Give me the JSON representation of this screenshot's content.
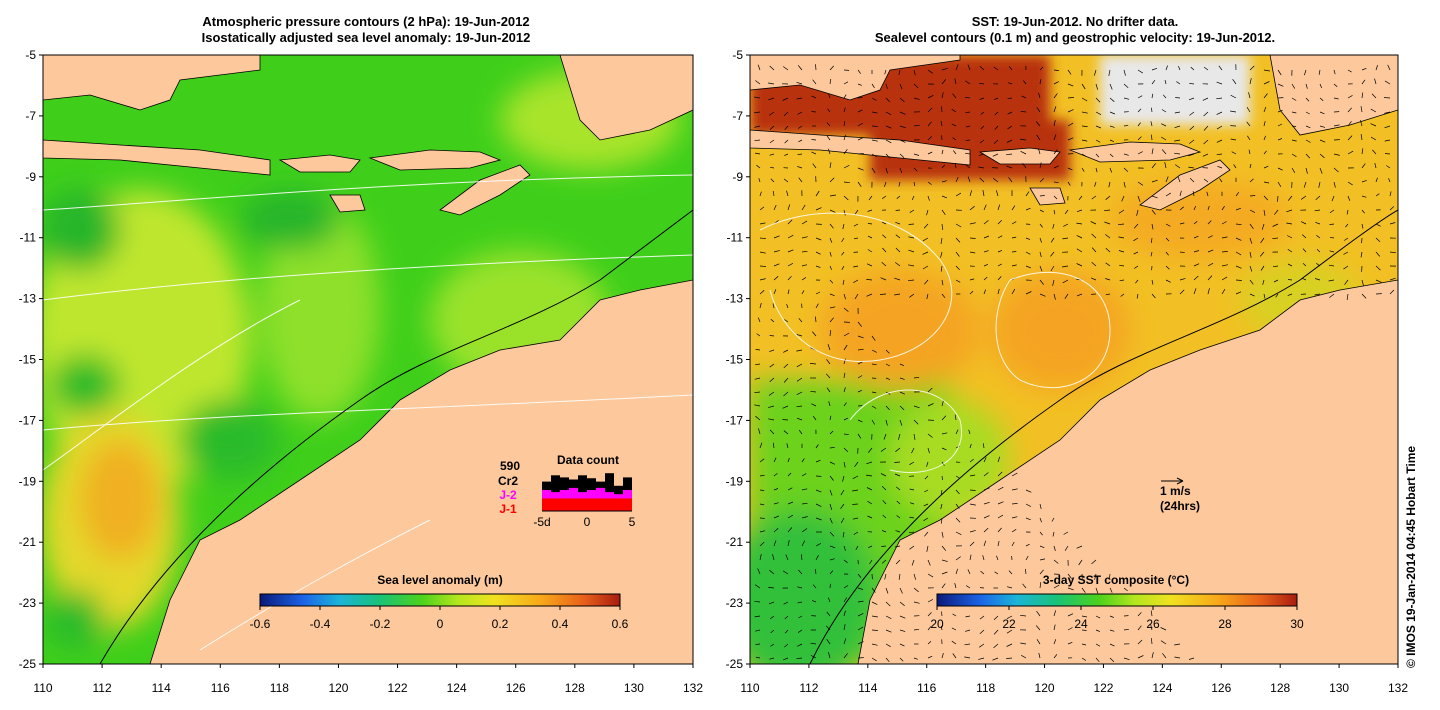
{
  "left_panel": {
    "title_line1": "Atmospheric pressure contours (2 hPa): 19-Jun-2012",
    "title_line2": "Isostatically adjusted sea level anomaly: 19-Jun-2012",
    "x_ticks": [
      "110",
      "112",
      "114",
      "116",
      "118",
      "120",
      "122",
      "124",
      "126",
      "128",
      "130",
      "132"
    ],
    "y_ticks": [
      "-5",
      "-7",
      "-9",
      "-11",
      "-13",
      "-15",
      "-17",
      "-19",
      "-21",
      "-23",
      "-25"
    ],
    "colorbar": {
      "title": "Sea level anomaly (m)",
      "ticks": [
        "-0.6",
        "-0.4",
        "-0.2",
        "0",
        "0.2",
        "0.4",
        "0.6"
      ]
    },
    "data_count": {
      "title": "Data count",
      "total": "590",
      "legend": [
        {
          "label": "Cr2",
          "color": "#000000"
        },
        {
          "label": "J-2",
          "color": "#ff00ff"
        },
        {
          "label": "J-1",
          "color": "#ff0000"
        }
      ],
      "x_ticks": [
        "-5d",
        "0",
        "5"
      ],
      "bars": [
        {
          "cr2": 0.7,
          "j2": 0.5,
          "j1": 0.3
        },
        {
          "cr2": 0.85,
          "j2": 0.45,
          "j1": 0.3
        },
        {
          "cr2": 0.8,
          "j2": 0.5,
          "j1": 0.3
        },
        {
          "cr2": 0.75,
          "j2": 0.55,
          "j1": 0.3
        },
        {
          "cr2": 0.85,
          "j2": 0.45,
          "j1": 0.3
        },
        {
          "cr2": 0.78,
          "j2": 0.5,
          "j1": 0.3
        },
        {
          "cr2": 0.7,
          "j2": 0.55,
          "j1": 0.3
        },
        {
          "cr2": 0.9,
          "j2": 0.45,
          "j1": 0.3
        },
        {
          "cr2": 0.6,
          "j2": 0.4,
          "j1": 0.3
        },
        {
          "cr2": 0.8,
          "j2": 0.5,
          "j1": 0.3
        }
      ]
    }
  },
  "right_panel": {
    "title_line1": "SST: 19-Jun-2012. No drifter data.",
    "title_line2": "Sealevel contours (0.1 m) and geostrophic velocity: 19-Jun-2012.",
    "x_ticks": [
      "110",
      "112",
      "114",
      "116",
      "118",
      "120",
      "122",
      "124",
      "126",
      "128",
      "130",
      "132"
    ],
    "y_ticks": [
      "-5",
      "-7",
      "-9",
      "-11",
      "-13",
      "-15",
      "-17",
      "-19",
      "-21",
      "-23",
      "-25"
    ],
    "colorbar": {
      "title": "3-day SST composite (°C)",
      "ticks": [
        "20",
        "22",
        "24",
        "26",
        "28",
        "30"
      ]
    },
    "velocity_key": {
      "line1": "1 m/s",
      "line2": "(24hrs)"
    }
  },
  "credit": "© IMOS 19-Jan-2014 04:45 Hobart Time",
  "colors": {
    "land": "#fcc89c",
    "sla_green": "#3fcf1b",
    "sla_yellow": "#c8e830",
    "sst_orange": "#f4a21e",
    "sst_red": "#b8300e"
  }
}
